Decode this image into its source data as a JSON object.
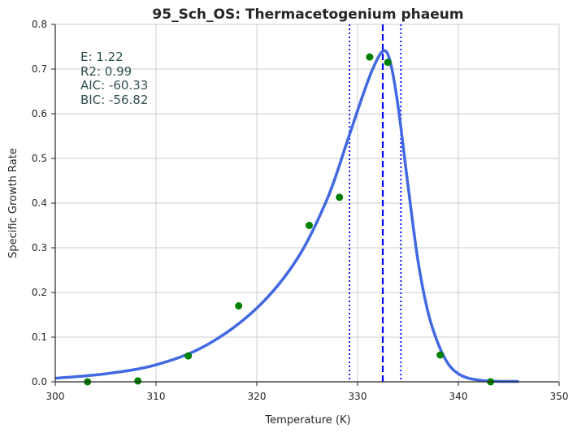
{
  "chart_data": {
    "type": "scatter",
    "title": "95_Sch_OS: Thermacetogenium phaeum",
    "xlabel": "Temperature (K)",
    "ylabel": "Specific Growth Rate",
    "xlim": [
      300,
      350
    ],
    "ylim": [
      0,
      0.8
    ],
    "xticks": [
      300,
      310,
      320,
      330,
      340,
      350
    ],
    "yticks": [
      0.0,
      0.1,
      0.2,
      0.3,
      0.4,
      0.5,
      0.6,
      0.7,
      0.8
    ],
    "grid": true,
    "observed": {
      "color": "#008000",
      "x": [
        303.2,
        308.2,
        313.2,
        318.2,
        325.2,
        328.2,
        331.2,
        333.0,
        338.2,
        343.2
      ],
      "y": [
        0.0,
        0.002,
        0.058,
        0.17,
        0.35,
        0.413,
        0.727,
        0.715,
        0.06,
        0.0
      ]
    },
    "fit": {
      "color": "#4169e1",
      "x": [
        300,
        305,
        310,
        315,
        320,
        324,
        327,
        329,
        330.5,
        331.5,
        332.5,
        333.2,
        334,
        335,
        336,
        337,
        338,
        339,
        340,
        341,
        342,
        343,
        344,
        346
      ],
      "y": [
        0.008,
        0.018,
        0.038,
        0.082,
        0.165,
        0.275,
        0.41,
        0.54,
        0.64,
        0.7,
        0.74,
        0.72,
        0.62,
        0.44,
        0.27,
        0.155,
        0.085,
        0.04,
        0.018,
        0.008,
        0.004,
        0.002,
        0.001,
        0.001
      ]
    },
    "reference_lines": [
      {
        "x": 332.5,
        "style": "dashed",
        "color": "#0000ff"
      },
      {
        "x": 329.2,
        "style": "dotted",
        "color": "#0000ff"
      },
      {
        "x": 334.3,
        "style": "dotted",
        "color": "#0000ff"
      }
    ],
    "annotations": [
      "E:  1.22",
      "R2:  0.99",
      "AIC: -60.33",
      "BIC: -56.82"
    ]
  }
}
